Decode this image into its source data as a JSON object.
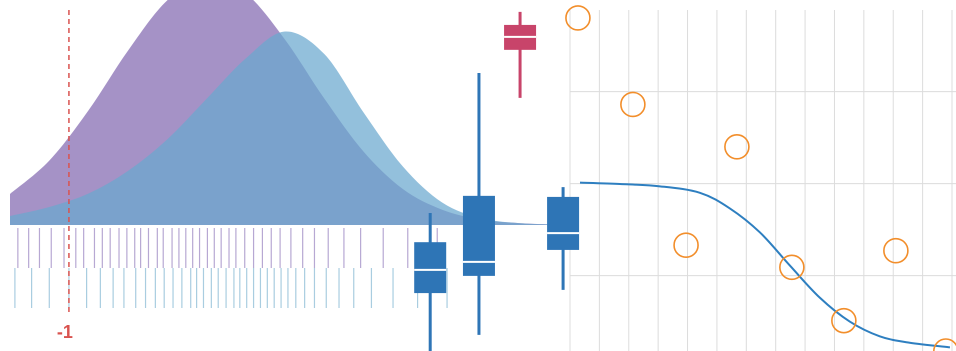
{
  "chart_data": [
    {
      "type": "density",
      "xlim": [
        -1.6,
        4
      ],
      "ylim": [
        0,
        0.5
      ],
      "x": [
        -1.6,
        -1.2,
        -0.8,
        -0.4,
        0,
        0.4,
        0.8,
        1.2,
        1.6,
        2.0,
        2.4,
        2.8,
        3.2,
        3.6,
        4.0
      ],
      "series": [
        {
          "color": "#a08cc3",
          "rug_color": "#b7a8d3",
          "values": [
            0.069,
            0.143,
            0.255,
            0.387,
            0.499,
            0.55,
            0.515,
            0.412,
            0.281,
            0.163,
            0.08,
            0.034,
            0.012,
            0.004,
            0.001
          ],
          "rug": [
            -1.52,
            -1.41,
            -1.3,
            -1.18,
            -1.05,
            -0.93,
            -0.85,
            -0.74,
            -0.66,
            -0.58,
            -0.49,
            -0.41,
            -0.33,
            -0.27,
            -0.19,
            -0.1,
            -0.04,
            0.05,
            0.12,
            0.19,
            0.26,
            0.33,
            0.41,
            0.48,
            0.55,
            0.63,
            0.7,
            0.79,
            0.88,
            0.97,
            1.06,
            1.15,
            1.26,
            1.38,
            1.5,
            1.64,
            1.8,
            1.97,
            2.2,
            2.45,
            2.75
          ]
        },
        {
          "color": "#6aa8cf",
          "rug_color": "#a9cde0",
          "values": [
            0.02,
            0.04,
            0.07,
            0.12,
            0.19,
            0.28,
            0.37,
            0.43,
            0.38,
            0.25,
            0.13,
            0.05,
            0.015,
            0.004,
            0.001
          ],
          "rug": [
            -1.55,
            -1.38,
            -1.2,
            -1.0,
            -0.82,
            -0.68,
            -0.55,
            -0.44,
            -0.32,
            -0.22,
            -0.12,
            -0.03,
            0.06,
            0.15,
            0.24,
            0.3,
            0.37,
            0.45,
            0.52,
            0.6,
            0.68,
            0.74,
            0.81,
            0.88,
            0.95,
            1.02,
            1.09,
            1.16,
            1.23,
            1.31,
            1.4,
            1.5,
            1.62,
            1.75,
            1.9,
            2.08,
            2.3,
            2.55,
            2.85
          ]
        }
      ],
      "vline": {
        "value": -1,
        "color": "#d9534f"
      }
    },
    {
      "type": "box",
      "xlim": [
        0,
        10
      ],
      "ylim": [
        0,
        10
      ],
      "boxes": [
        {
          "color": "#2e75b6",
          "x": 4.5,
          "low": 0,
          "q1": 1.65,
          "median": 2.31,
          "q3": 3.1,
          "high": 3.93
        },
        {
          "color": "#2e75b6",
          "x": 5.01,
          "low": 0.46,
          "q1": 2.14,
          "median": 2.54,
          "q3": 4.42,
          "high": 7.92
        },
        {
          "color": "#2e75b6",
          "x": 5.89,
          "low": 1.74,
          "q1": 2.88,
          "median": 3.36,
          "q3": 4.39,
          "high": 4.67
        },
        {
          "color": "#c8446a",
          "x": 5.44,
          "low": 7.21,
          "q1": 8.58,
          "median": 8.95,
          "q3": 9.29,
          "high": 9.66
        }
      ]
    },
    {
      "type": "scatter",
      "xlim": [
        0,
        13
      ],
      "ylim": [
        0.18,
        3.99
      ],
      "xticks": [
        0,
        1,
        2,
        3,
        4,
        5,
        6,
        7,
        8,
        9,
        10,
        11,
        12,
        13
      ],
      "yticks": [
        1,
        2,
        3
      ],
      "grid": true,
      "series": [
        {
          "color": "#f28e2b",
          "x": [
            0.27,
            2.14,
            5.68,
            3.95,
            7.55,
            11.09,
            9.32,
            12.79
          ],
          "values": [
            3.8,
            2.86,
            2.4,
            1.33,
            1.09,
            1.27,
            0.51,
            0.18
          ]
        }
      ],
      "line": {
        "color": "#2e7fc0",
        "x": [
          0.34,
          1.7,
          3.06,
          4.42,
          5.44,
          6.46,
          7.48,
          8.5,
          9.52,
          10.54,
          11.56,
          12.93
        ],
        "values": [
          2.01,
          1.995,
          1.97,
          1.9,
          1.73,
          1.47,
          1.11,
          0.76,
          0.5,
          0.34,
          0.27,
          0.22
        ]
      }
    }
  ]
}
